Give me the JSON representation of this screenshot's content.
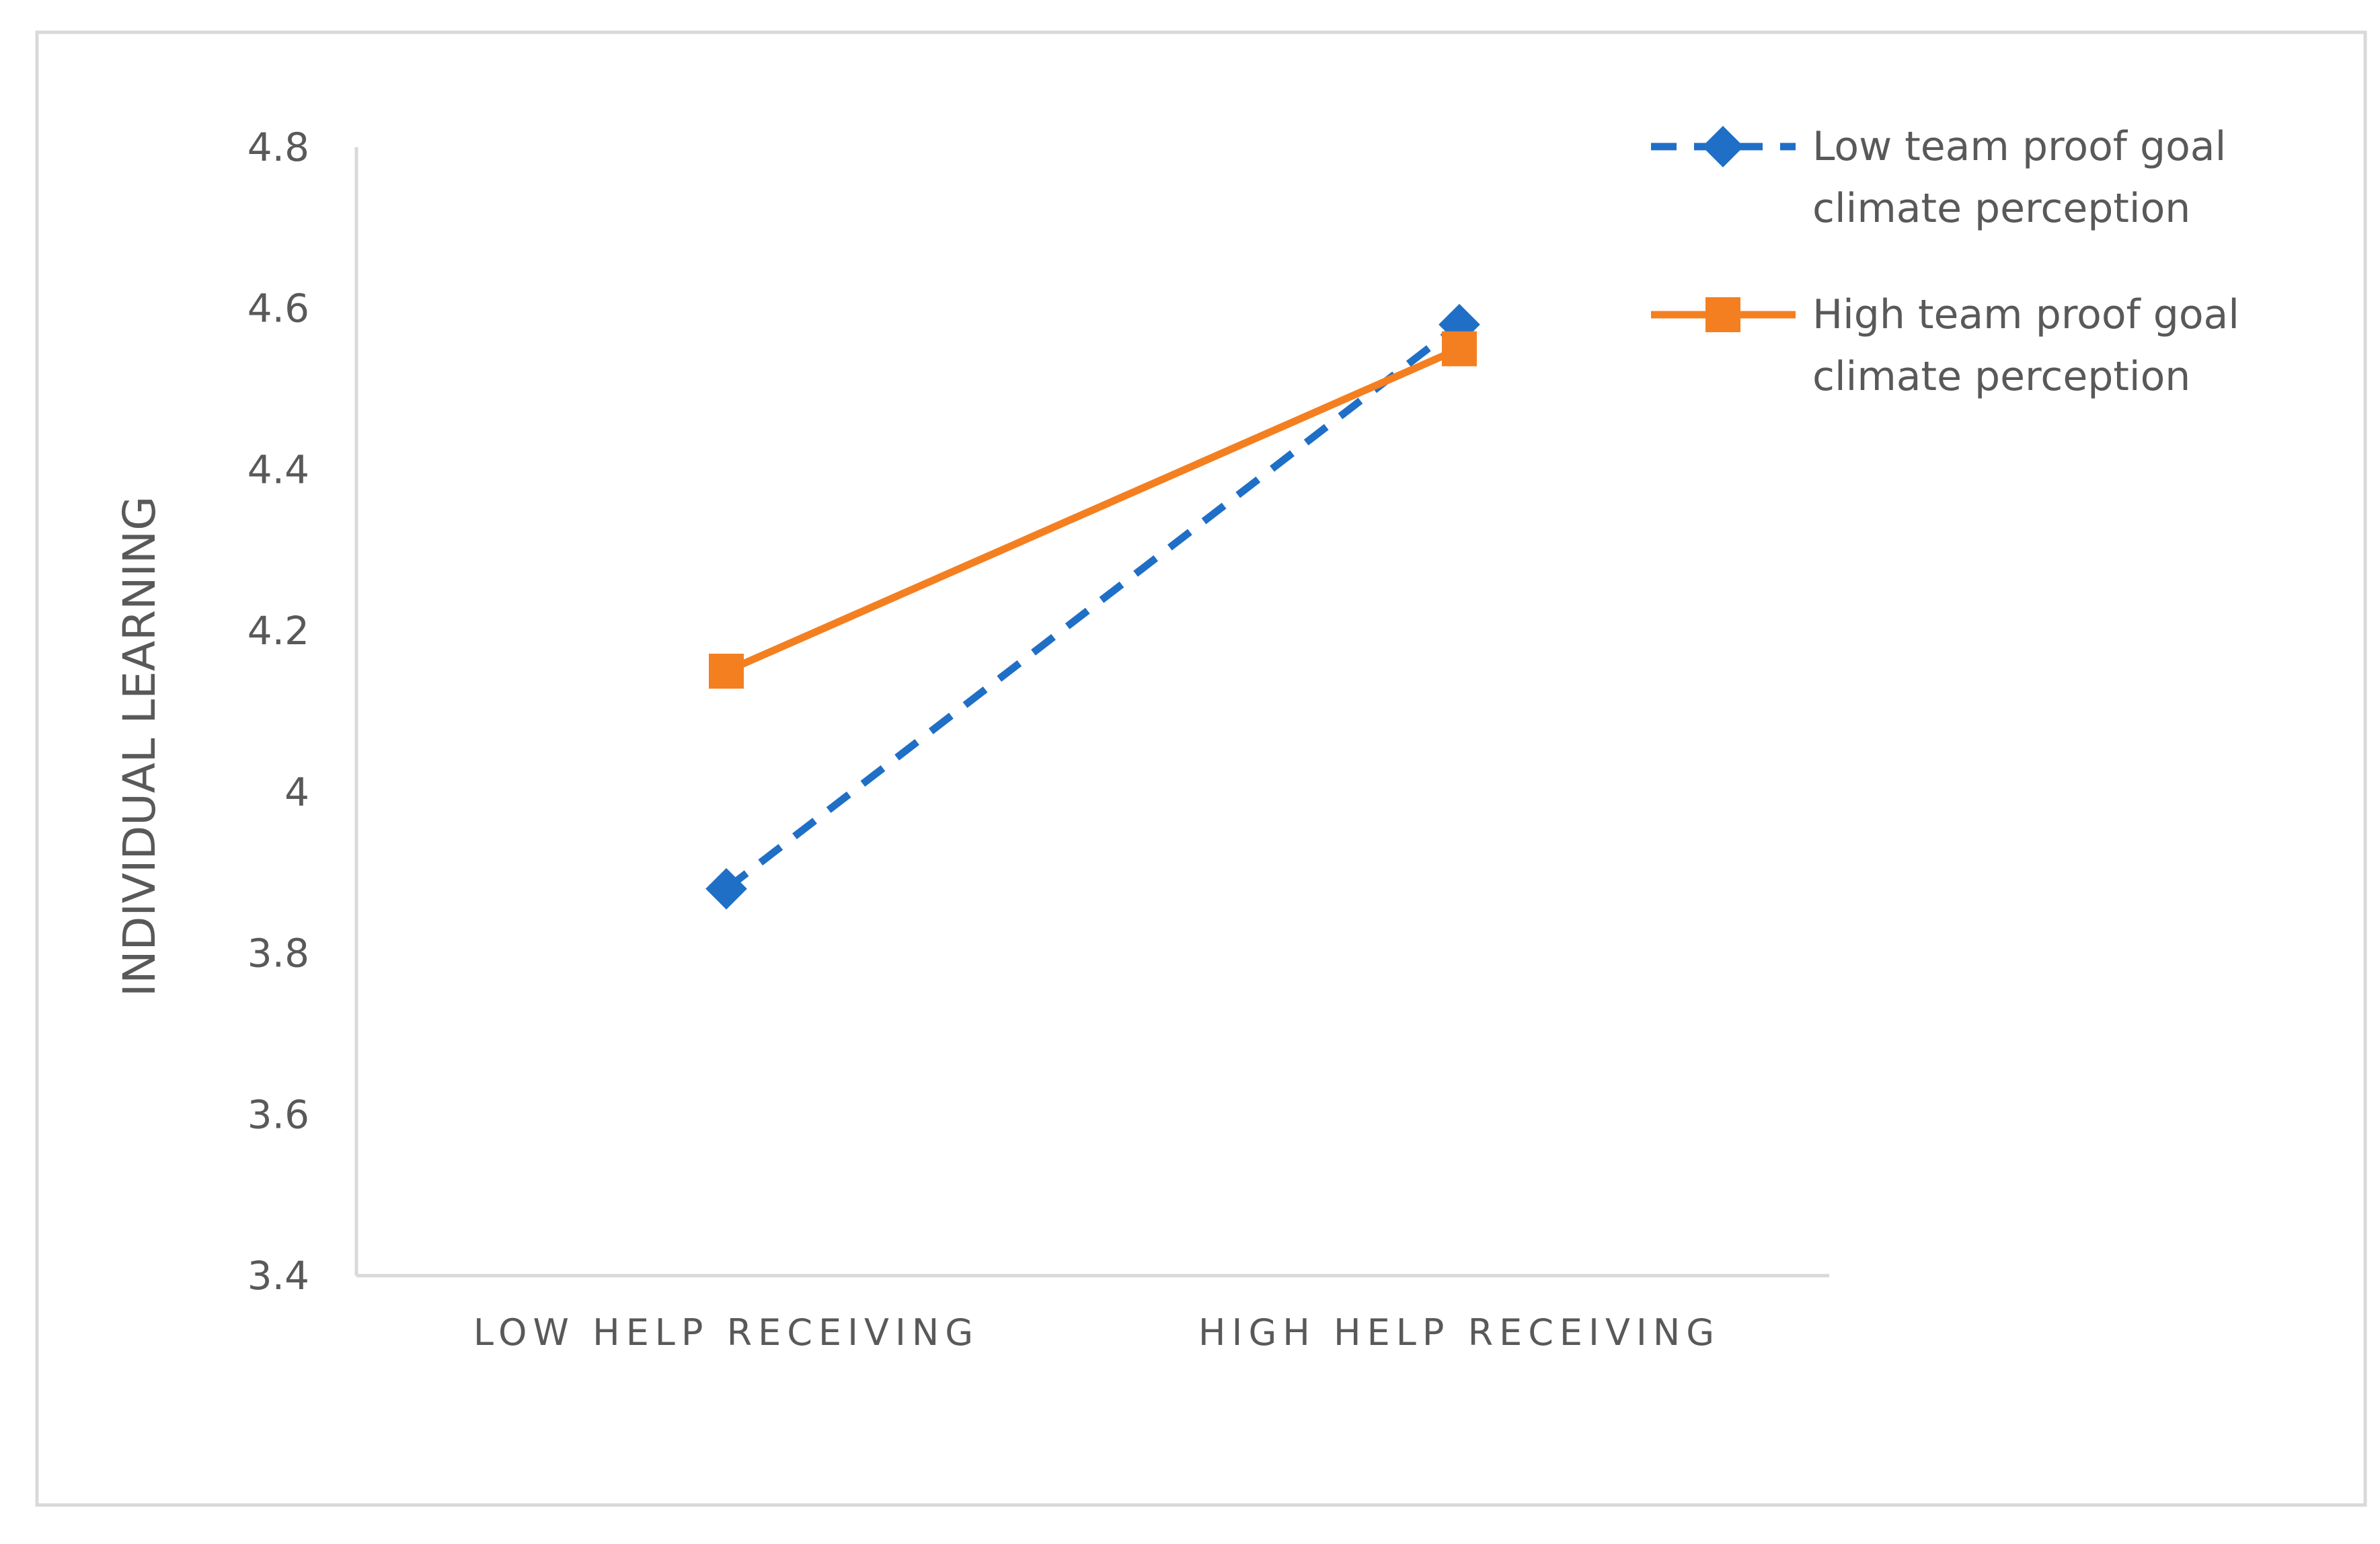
{
  "chart_data": {
    "type": "line",
    "title": "",
    "xlabel": "",
    "ylabel": "INDIVIDUAL LEARNING",
    "categories": [
      "LOW HELP RECEIVING",
      "HIGH HELP RECEIVING"
    ],
    "ylim": [
      3.4,
      4.8
    ],
    "yticks": [
      "3.4",
      "3.6",
      "3.8",
      "4",
      "4.2",
      "4.4",
      "4.6",
      "4.8"
    ],
    "grid": false,
    "legend_position": "top-right",
    "series": [
      {
        "name_lines": [
          "Low team proof goal",
          "climate perception"
        ],
        "values": [
          3.88,
          4.58
        ],
        "color": "#1f6fc6",
        "line_style": "dashed",
        "marker": "diamond"
      },
      {
        "name_lines": [
          "High team proof goal",
          "climate perception"
        ],
        "values": [
          4.15,
          4.55
        ],
        "color": "#f47f20",
        "line_style": "solid",
        "marker": "square"
      }
    ]
  }
}
